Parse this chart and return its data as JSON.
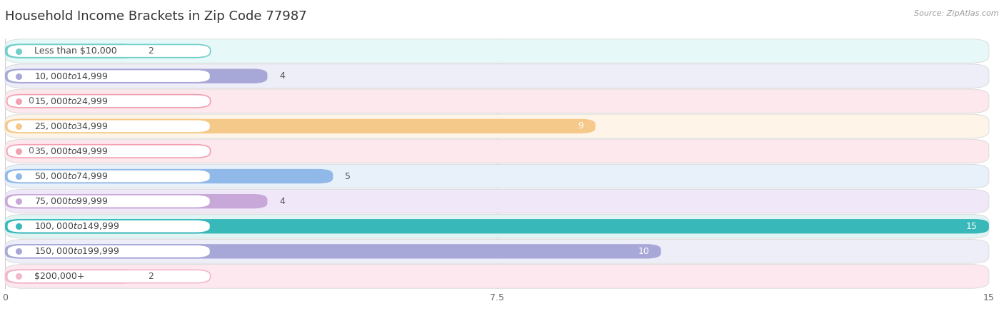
{
  "title": "Household Income Brackets in Zip Code 77987",
  "source": "Source: ZipAtlas.com",
  "categories": [
    "Less than $10,000",
    "$10,000 to $14,999",
    "$15,000 to $24,999",
    "$25,000 to $34,999",
    "$35,000 to $49,999",
    "$50,000 to $74,999",
    "$75,000 to $99,999",
    "$100,000 to $149,999",
    "$150,000 to $199,999",
    "$200,000+"
  ],
  "values": [
    2,
    4,
    0,
    9,
    0,
    5,
    4,
    15,
    10,
    2
  ],
  "bar_colors": [
    "#72ceca",
    "#a8a8d8",
    "#f2a0b2",
    "#f5c98a",
    "#f2a0b2",
    "#90b8e8",
    "#c8a8d8",
    "#38b8b8",
    "#a8a8d8",
    "#f4b8cc"
  ],
  "bar_bg_colors": [
    "#e6f8f7",
    "#eeeef8",
    "#fce8ed",
    "#fef5e8",
    "#fce8ed",
    "#e8f0fa",
    "#f0e8f8",
    "#e0f4f4",
    "#eeeef8",
    "#fde8f0"
  ],
  "xlim": [
    0,
    15
  ],
  "xticks": [
    0,
    7.5,
    15
  ],
  "background_color": "#ffffff",
  "title_fontsize": 13,
  "label_fontsize": 9,
  "value_fontsize": 9,
  "bar_height": 0.58
}
